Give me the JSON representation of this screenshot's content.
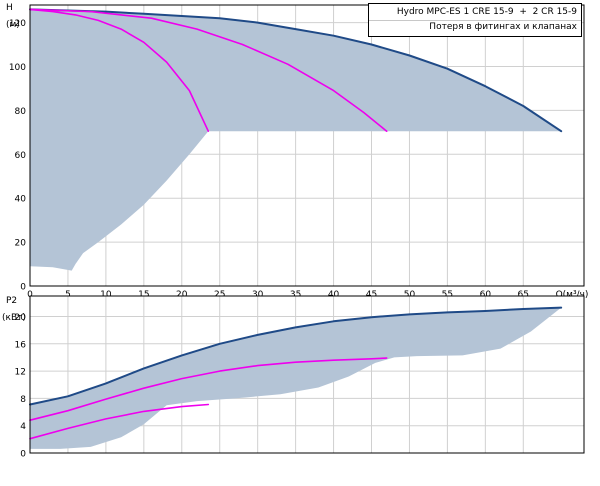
{
  "legend": {
    "product": "Hydro MPC-ES 1 CRE 15-9  +  2 CR 15-9",
    "note": "Потеря в фитингах и клапанах"
  },
  "colors": {
    "envelope_fill": "#b4c4d6",
    "max_curve": "#1f4a87",
    "duty_curve": "#ee00ee",
    "grid": "#d0d0d0",
    "axis": "#000000"
  },
  "chart_data": [
    {
      "type": "line",
      "ylabel_lines": [
        "H",
        "(м)"
      ],
      "xlabel": "Q(м³/ч)",
      "xlim": [
        0,
        73
      ],
      "ylim": [
        0,
        128
      ],
      "xticks": [
        0,
        5,
        10,
        15,
        20,
        25,
        30,
        35,
        40,
        45,
        50,
        55,
        60,
        65
      ],
      "yticks": [
        0,
        20,
        40,
        60,
        80,
        100,
        120
      ],
      "grid": true,
      "legend_position": "top-right",
      "envelope": [
        [
          0,
          126
        ],
        [
          5,
          125.5
        ],
        [
          10,
          125
        ],
        [
          15,
          124
        ],
        [
          20,
          123
        ],
        [
          25,
          122
        ],
        [
          30,
          120
        ],
        [
          35,
          117
        ],
        [
          40,
          114
        ],
        [
          45,
          110
        ],
        [
          50,
          105
        ],
        [
          55,
          99
        ],
        [
          60,
          91
        ],
        [
          65,
          82
        ],
        [
          70,
          70.5
        ],
        [
          25,
          70.5
        ],
        [
          23.5,
          70.5
        ],
        [
          21,
          60
        ],
        [
          18,
          48
        ],
        [
          15,
          37
        ],
        [
          12,
          28
        ],
        [
          9,
          20
        ],
        [
          7,
          15
        ],
        [
          6,
          10
        ],
        [
          5.5,
          7
        ],
        [
          3,
          8.5
        ],
        [
          0,
          9
        ]
      ],
      "series": [
        {
          "role": "max",
          "points": [
            [
              0,
              126
            ],
            [
              5,
              125.5
            ],
            [
              10,
              125
            ],
            [
              15,
              124
            ],
            [
              20,
              123
            ],
            [
              25,
              122
            ],
            [
              30,
              120
            ],
            [
              35,
              117
            ],
            [
              40,
              114
            ],
            [
              45,
              110
            ],
            [
              50,
              105
            ],
            [
              55,
              99
            ],
            [
              60,
              91
            ],
            [
              65,
              82
            ],
            [
              70,
              70.5
            ]
          ]
        },
        {
          "role": "duty",
          "points": [
            [
              0,
              126
            ],
            [
              3,
              125
            ],
            [
              6,
              123.5
            ],
            [
              9,
              121
            ],
            [
              12,
              117
            ],
            [
              15,
              111
            ],
            [
              18,
              102
            ],
            [
              21,
              89
            ],
            [
              23.5,
              70.5
            ]
          ]
        },
        {
          "role": "duty",
          "points": [
            [
              0,
              126
            ],
            [
              8,
              125
            ],
            [
              16,
              122
            ],
            [
              22,
              117
            ],
            [
              28,
              110
            ],
            [
              34,
              101
            ],
            [
              40,
              89
            ],
            [
              44,
              79
            ],
            [
              47,
              70.5
            ]
          ]
        }
      ]
    },
    {
      "type": "line",
      "ylabel_lines": [
        "P2",
        "(кВт)"
      ],
      "xlim": [
        0,
        73
      ],
      "ylim": [
        0,
        23
      ],
      "xticks": [
        0,
        5,
        10,
        15,
        20,
        25,
        30,
        35,
        40,
        45,
        50,
        55,
        60,
        65
      ],
      "yticks": [
        0,
        4,
        8,
        12,
        16,
        20
      ],
      "grid": true,
      "envelope": [
        [
          0,
          7.1
        ],
        [
          5,
          8.3
        ],
        [
          10,
          10.2
        ],
        [
          15,
          12.4
        ],
        [
          20,
          14.3
        ],
        [
          25,
          16
        ],
        [
          30,
          17.3
        ],
        [
          35,
          18.4
        ],
        [
          40,
          19.3
        ],
        [
          45,
          19.9
        ],
        [
          50,
          20.3
        ],
        [
          55,
          20.6
        ],
        [
          60,
          20.8
        ],
        [
          65,
          21.1
        ],
        [
          70,
          21.3
        ],
        [
          66,
          17.8
        ],
        [
          62,
          15.3
        ],
        [
          57,
          14.3
        ],
        [
          51,
          14.2
        ],
        [
          48,
          14
        ],
        [
          45.5,
          13.2
        ],
        [
          42,
          11.2
        ],
        [
          38,
          9.6
        ],
        [
          33,
          8.6
        ],
        [
          27,
          8
        ],
        [
          22,
          7.6
        ],
        [
          18,
          7
        ],
        [
          15,
          4.2
        ],
        [
          12,
          2.3
        ],
        [
          8,
          0.9
        ],
        [
          4,
          0.6
        ],
        [
          0,
          0.6
        ]
      ],
      "series": [
        {
          "role": "max",
          "points": [
            [
              0,
              7.1
            ],
            [
              5,
              8.3
            ],
            [
              10,
              10.2
            ],
            [
              15,
              12.4
            ],
            [
              20,
              14.3
            ],
            [
              25,
              16
            ],
            [
              30,
              17.3
            ],
            [
              35,
              18.4
            ],
            [
              40,
              19.3
            ],
            [
              45,
              19.9
            ],
            [
              50,
              20.3
            ],
            [
              55,
              20.6
            ],
            [
              60,
              20.8
            ],
            [
              65,
              21.1
            ],
            [
              70,
              21.3
            ]
          ]
        },
        {
          "role": "duty",
          "points": [
            [
              0,
              4.8
            ],
            [
              5,
              6.2
            ],
            [
              10,
              7.9
            ],
            [
              15,
              9.5
            ],
            [
              20,
              10.9
            ],
            [
              25,
              12
            ],
            [
              30,
              12.8
            ],
            [
              35,
              13.3
            ],
            [
              40,
              13.6
            ],
            [
              45,
              13.8
            ],
            [
              47,
              13.9
            ]
          ]
        },
        {
          "role": "duty",
          "points": [
            [
              0,
              2.1
            ],
            [
              5,
              3.6
            ],
            [
              10,
              5
            ],
            [
              15,
              6.1
            ],
            [
              20,
              6.8
            ],
            [
              23.5,
              7.1
            ]
          ]
        }
      ]
    }
  ]
}
